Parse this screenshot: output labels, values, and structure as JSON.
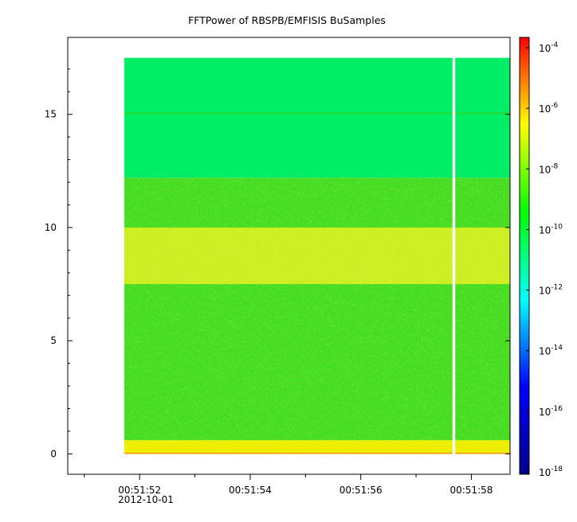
{
  "chart_data": {
    "type": "heatmap",
    "title": "FFTPower of RBSPB/EMFISIS  BuSamples",
    "xlabel": "",
    "ylabel": "",
    "x_ticks": [
      "00:51:52",
      "00:51:54",
      "00:51:56",
      "00:51:58"
    ],
    "x_tick_sublabel": "2012-10-01",
    "x_range_seconds": [
      50.7,
      58.7
    ],
    "y_ticks": [
      0,
      5,
      10,
      15
    ],
    "ylim": [
      -0.9,
      18.4
    ],
    "data_extent": {
      "t_start_s": 51.72,
      "t_end_s": 58.7,
      "freq_min": 0.0,
      "freq_max": 17.5,
      "gap_at_s": 57.68
    },
    "colorbar": {
      "scale": "log",
      "range": [
        "1e-18",
        "1e-4"
      ],
      "tick_labels": [
        {
          "base": "10",
          "exp": "-4"
        },
        {
          "base": "10",
          "exp": "-6"
        },
        {
          "base": "10",
          "exp": "-8"
        },
        {
          "base": "10",
          "exp": "-10"
        },
        {
          "base": "10",
          "exp": "-12"
        },
        {
          "base": "10",
          "exp": "-14"
        },
        {
          "base": "10",
          "exp": "-16"
        },
        {
          "base": "10",
          "exp": "-18"
        }
      ],
      "colors_low_to_high": [
        "#00008b",
        "#0000ff",
        "#00ffff",
        "#00ff00",
        "#ffff00",
        "#ff0000"
      ]
    },
    "power_levels_by_band": [
      {
        "freq_range": [
          12.2,
          17.5
        ],
        "log10_power": -11.6,
        "color": "#00ee66"
      },
      {
        "freq_range": [
          15.0,
          15.1
        ],
        "log10_power": -11.0,
        "color": "#22dd33"
      },
      {
        "freq_range": [
          0.6,
          12.2
        ],
        "log10_power": -10.0,
        "color": "#44dd22"
      },
      {
        "freq_range": [
          7.5,
          10.0
        ],
        "log10_power": -9.0,
        "color": "#ccee22"
      },
      {
        "freq_range": [
          0.0,
          0.6
        ],
        "log10_power": -8.5,
        "color": "#eeee00"
      },
      {
        "freq_range": [
          0.0,
          0.05
        ],
        "log10_power": -6.5,
        "color": "#ff8800"
      }
    ]
  }
}
